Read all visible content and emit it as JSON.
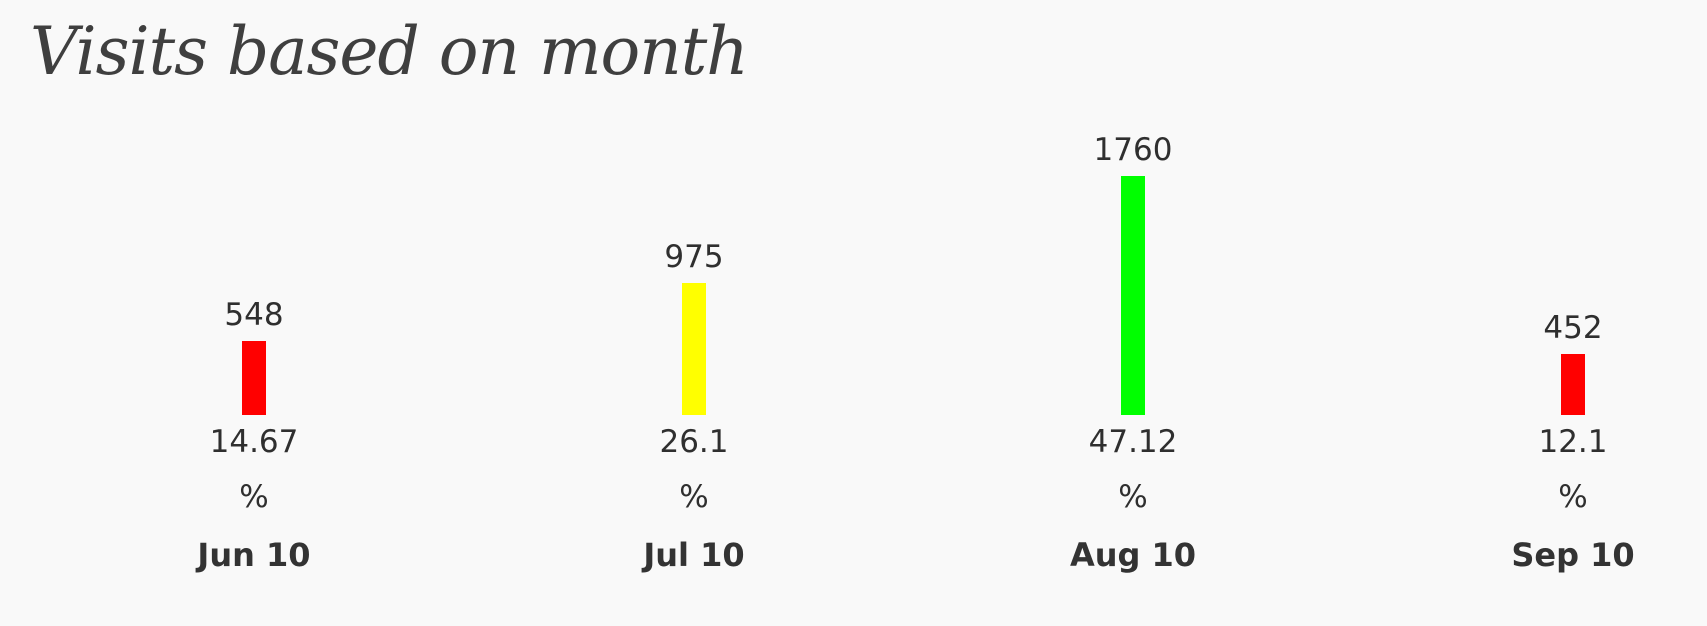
{
  "title": "Visits based on month",
  "percent_sign": "%",
  "chart_data": {
    "type": "bar",
    "title": "Visits based on month",
    "categories": [
      "Jun 10",
      "Jul 10",
      "Aug 10",
      "Sep 10"
    ],
    "values": [
      548,
      975,
      1760,
      452
    ],
    "percentages": [
      "14.67",
      "26.1",
      "47.12",
      "12.1"
    ],
    "colors": [
      "#ff0000",
      "#ffff00",
      "#00ff00",
      "#ff0000"
    ],
    "xlabel": "",
    "ylabel": "",
    "grid": false,
    "legend": "none"
  }
}
